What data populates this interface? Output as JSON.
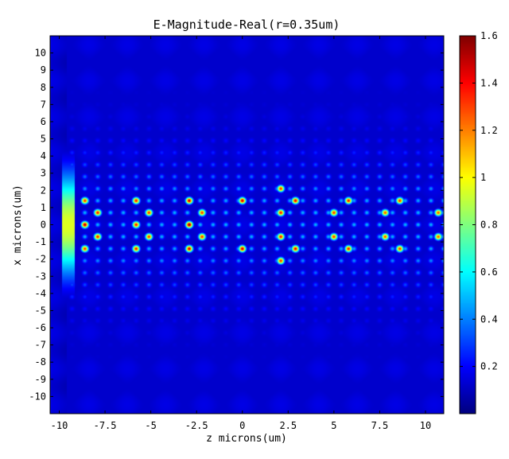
{
  "chart_data": {
    "type": "heatmap",
    "title": "E-Magnitude-Real(r=0.35um)",
    "xlabel": "z microns(um)",
    "ylabel": "x microns(um)",
    "xlim": [
      -10.5,
      11
    ],
    "ylim": [
      -11,
      11
    ],
    "xticks": [
      -10,
      -7.5,
      -5,
      -2.5,
      0,
      2.5,
      5,
      7.5,
      10
    ],
    "xtick_labels": [
      "-10",
      "-7.5",
      "-5",
      "-2.5",
      "0",
      "2.5",
      "5",
      "7.5",
      "10"
    ],
    "yticks": [
      10,
      9,
      8,
      7,
      6,
      5,
      4,
      3,
      2,
      1,
      0,
      -1,
      -2,
      -3,
      -4,
      -5,
      -6,
      -7,
      -8,
      -9,
      -10
    ],
    "ytick_labels": [
      "10",
      "9",
      "8",
      "7",
      "6",
      "5",
      "4",
      "3",
      "2",
      "1",
      "0",
      "-1",
      "-2",
      "-3",
      "-4",
      "-5",
      "-6",
      "-7",
      "-8",
      "-9",
      "-10"
    ],
    "colorbar": {
      "colormap": "jet",
      "range": [
        0,
        1.6
      ],
      "ticks": [
        0.2,
        0.4,
        0.6,
        0.8,
        1,
        1.2,
        1.4,
        1.6
      ],
      "tick_labels": [
        "0.2",
        "0.4",
        "0.6",
        "0.8",
        "1",
        "1.2",
        "1.4",
        "1.6"
      ]
    },
    "source_column": {
      "z": -9.5,
      "peak_value": 0.95,
      "width_x": 3.0
    },
    "lattice": {
      "z_start": -8.6,
      "z_spacing": 2.8,
      "x_spacing": 0.7,
      "num_columns": 8,
      "x_extent": 4.6
    },
    "hot_spots": [
      {
        "z": -8.6,
        "x": 0,
        "v": 1.55
      },
      {
        "z": -8.6,
        "x": 1.4,
        "v": 1.35
      },
      {
        "z": -8.6,
        "x": -1.4,
        "v": 1.35
      },
      {
        "z": -7.9,
        "x": 0.7,
        "v": 1.4
      },
      {
        "z": -7.9,
        "x": -0.7,
        "v": 1.4
      },
      {
        "z": -5.8,
        "x": 0,
        "v": 1.4
      },
      {
        "z": -5.8,
        "x": 1.4,
        "v": 1.4
      },
      {
        "z": -5.8,
        "x": -1.4,
        "v": 1.4
      },
      {
        "z": -5.1,
        "x": 0.7,
        "v": 1.35
      },
      {
        "z": -5.1,
        "x": -0.7,
        "v": 1.35
      },
      {
        "z": -2.9,
        "x": 0,
        "v": 1.6
      },
      {
        "z": -2.9,
        "x": 1.4,
        "v": 1.5
      },
      {
        "z": -2.9,
        "x": -1.4,
        "v": 1.5
      },
      {
        "z": -2.2,
        "x": 0.7,
        "v": 1.35
      },
      {
        "z": -2.2,
        "x": -0.7,
        "v": 1.35
      },
      {
        "z": 0,
        "x": 1.4,
        "v": 1.5
      },
      {
        "z": 0,
        "x": -1.4,
        "v": 1.5
      },
      {
        "z": 2.1,
        "x": 2.1,
        "v": 1.35
      },
      {
        "z": 2.1,
        "x": 0.7,
        "v": 1.4
      },
      {
        "z": 2.1,
        "x": -0.7,
        "v": 1.4
      },
      {
        "z": 2.1,
        "x": -2.1,
        "v": 1.35
      },
      {
        "z": 2.9,
        "x": 1.4,
        "v": 1.45
      },
      {
        "z": 2.9,
        "x": -1.4,
        "v": 1.45
      },
      {
        "z": 5.0,
        "x": 0.7,
        "v": 1.35
      },
      {
        "z": 5.0,
        "x": -0.7,
        "v": 1.35
      },
      {
        "z": 5.8,
        "x": 1.4,
        "v": 1.4
      },
      {
        "z": 5.8,
        "x": -1.4,
        "v": 1.4
      },
      {
        "z": 7.8,
        "x": 0.7,
        "v": 1.3
      },
      {
        "z": 7.8,
        "x": -0.7,
        "v": 1.3
      },
      {
        "z": 8.6,
        "x": 1.4,
        "v": 1.35
      },
      {
        "z": 8.6,
        "x": -1.4,
        "v": 1.35
      },
      {
        "z": 10.7,
        "x": 0.7,
        "v": 1.3
      },
      {
        "z": 10.7,
        "x": -0.7,
        "v": 1.3
      }
    ]
  }
}
